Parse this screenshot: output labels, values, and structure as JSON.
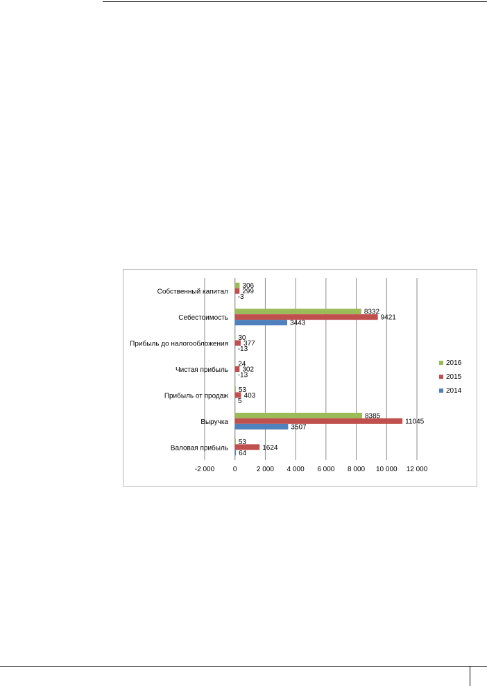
{
  "chart_data": {
    "type": "bar",
    "orientation": "horizontal",
    "categories": [
      "Собственный капитал",
      "Себестоимость",
      "Прибыль до налогообложения",
      "Чистая прибыль",
      "Прибыль от продаж",
      "Выручка",
      "Валовая прибыль"
    ],
    "series": [
      {
        "name": "2016",
        "color": "#9bbb59",
        "values": [
          306,
          8332,
          30,
          24,
          53,
          8385,
          53
        ],
        "labels": [
          "306",
          "8332",
          "30",
          "24",
          "53",
          "8385",
          "53"
        ]
      },
      {
        "name": "2015",
        "color": "#c0504d",
        "values": [
          299,
          9421,
          377,
          302,
          403,
          11045,
          1624
        ],
        "labels": [
          "299",
          "9421",
          "377",
          "302",
          "403",
          "11045",
          "1624"
        ]
      },
      {
        "name": "2014",
        "color": "#4f81bd",
        "values": [
          -3,
          3443,
          -13,
          -13,
          5,
          3507,
          64
        ],
        "labels": [
          "-3",
          "3443",
          "-13",
          "-13",
          "5",
          "3507",
          "64"
        ]
      }
    ],
    "xlim": [
      -2000,
      12000
    ],
    "xticks": [
      -2000,
      0,
      2000,
      4000,
      6000,
      8000,
      10000,
      12000
    ],
    "xtick_labels": [
      "-2 000",
      "0",
      "2 000",
      "4 000",
      "6 000",
      "8 000",
      "10 000",
      "12 000"
    ],
    "grid": "vertical",
    "legend_position": "right",
    "title": "",
    "xlabel": "",
    "ylabel": ""
  }
}
